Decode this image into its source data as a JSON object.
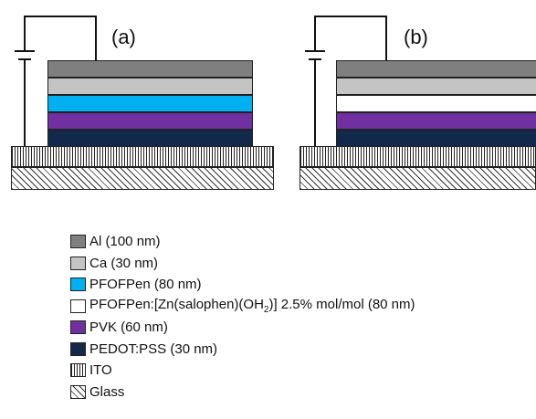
{
  "panels": [
    {
      "label": "(a)",
      "layers": [
        {
          "name": "Al",
          "color": "#7f7f7f"
        },
        {
          "name": "Ca",
          "color": "#c4c4c4"
        },
        {
          "name": "PFOFPen",
          "color": "#00b0f0"
        },
        {
          "name": "PVK",
          "color": "#7030a0"
        },
        {
          "name": "PEDOT:PSS",
          "color": "#13294b"
        }
      ]
    },
    {
      "label": "(b)",
      "layers": [
        {
          "name": "Al",
          "color": "#7f7f7f"
        },
        {
          "name": "Ca",
          "color": "#c4c4c4"
        },
        {
          "name": "PFOFPen:[Zn(salophen)(OH2)]",
          "color": "#ffffff"
        },
        {
          "name": "PVK",
          "color": "#7030a0"
        },
        {
          "name": "PEDOT:PSS",
          "color": "#13294b"
        }
      ]
    }
  ],
  "legend": [
    {
      "text": "Al (100 nm)",
      "color": "#7f7f7f",
      "pattern": "solid"
    },
    {
      "text": "Ca (30 nm)",
      "color": "#c4c4c4",
      "pattern": "solid"
    },
    {
      "text": "PFOFPen (80 nm)",
      "color": "#00b0f0",
      "pattern": "solid"
    },
    {
      "text_before_sub": "PFOFPen:[Zn(salophen)(OH",
      "subscript": "2",
      "text_after_sub": ")] 2.5% mol/mol (80 nm)",
      "color": "#ffffff",
      "pattern": "solid"
    },
    {
      "text": "PVK (60 nm)",
      "color": "#7030a0",
      "pattern": "solid"
    },
    {
      "text": "PEDOT:PSS (30 nm)",
      "color": "#13294b",
      "pattern": "solid"
    },
    {
      "text": "ITO",
      "color": "#ffffff",
      "pattern": "vertical-hatch"
    },
    {
      "text": "Glass",
      "color": "#ffffff",
      "pattern": "diagonal-hatch"
    }
  ]
}
